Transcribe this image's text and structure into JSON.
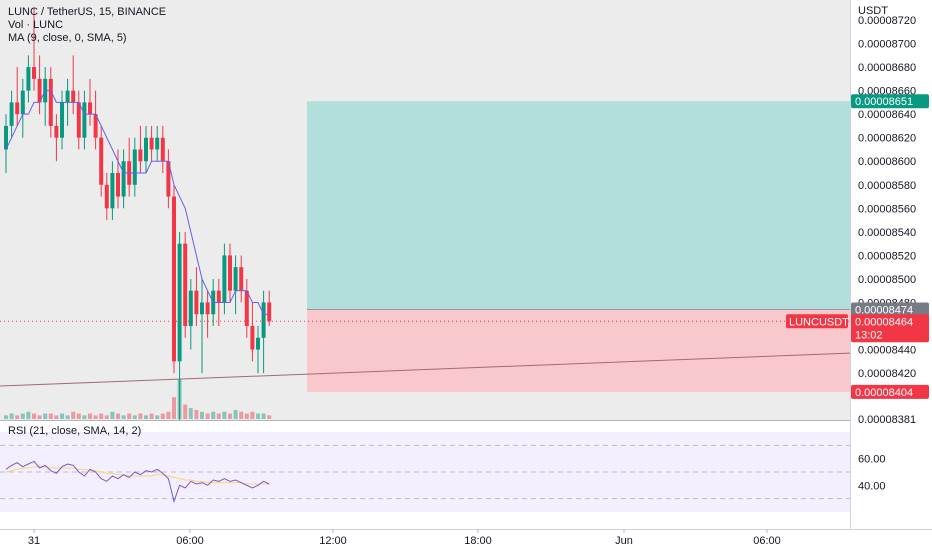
{
  "legend": {
    "symbol": "LUNC / TetherUS, 15, BINANCE",
    "volume": "Vol · LUNC",
    "ma": "MA (9, close, 0, SMA, 5)",
    "rsi": "RSI (21, close, SMA, 14, 2)"
  },
  "price_axis": {
    "currency": "USDT",
    "ticks": [
      "0.00008720",
      "0.00008700",
      "0.00008680",
      "0.00008660",
      "0.00008640",
      "0.00008620",
      "0.00008600",
      "0.00008580",
      "0.00008560",
      "0.00008540",
      "0.00008520",
      "0.00008500",
      "0.00008480",
      "0.00008440",
      "0.00008420",
      "0.00008381"
    ],
    "tick_values": [
      8.72e-05,
      8.7e-05,
      8.68e-05,
      8.66e-05,
      8.64e-05,
      8.62e-05,
      8.6e-05,
      8.58e-05,
      8.56e-05,
      8.54e-05,
      8.52e-05,
      8.5e-05,
      8.48e-05,
      8.44e-05,
      8.42e-05,
      8.381e-05
    ]
  },
  "price_tags": {
    "target": {
      "text": "0.00008651",
      "value": 8.651e-05,
      "color": "#089981"
    },
    "entry": {
      "text": "0.00008474",
      "value": 8.474e-05,
      "color": "#787b86"
    },
    "current": {
      "text": "0.00008464",
      "value": 8.464e-05,
      "color": "#f23645",
      "symbol": "LUNCUSDT",
      "countdown": "13:02"
    },
    "stop": {
      "text": "0.00008404",
      "value": 8.404e-05,
      "color": "#f23645"
    }
  },
  "rsi_axis": {
    "ticks": [
      "60.00",
      "40.00"
    ],
    "tick_values": [
      60,
      40
    ],
    "bands": [
      70,
      50,
      30
    ]
  },
  "time_axis": {
    "labels": [
      "31",
      "06:00",
      "12:00",
      "18:00",
      "Jun",
      "06:00"
    ]
  },
  "colors": {
    "up": "#089981",
    "down": "#f23645",
    "ma": "#6c5ce7",
    "rsi": "#7e57c2",
    "rsi_ma": "#f5d76e",
    "profit_zone": "#b2dfdb",
    "loss_zone": "#f8c8cc"
  },
  "chart_data": {
    "type": "candlestick",
    "symbol": "LUNC / TetherUS",
    "interval": "15",
    "exchange": "BINANCE",
    "candles": [
      [
        8.61e-05,
        8.64e-05,
        8.59e-05,
        8.63e-05
      ],
      [
        8.63e-05,
        8.66e-05,
        8.62e-05,
        8.65e-05
      ],
      [
        8.65e-05,
        8.68e-05,
        8.63e-05,
        8.64e-05
      ],
      [
        8.64e-05,
        8.67e-05,
        8.62e-05,
        8.66e-05
      ],
      [
        8.66e-05,
        8.69e-05,
        8.65e-05,
        8.68e-05
      ],
      [
        8.68e-05,
        8.73e-05,
        8.66e-05,
        8.67e-05
      ],
      [
        8.67e-05,
        8.69e-05,
        8.64e-05,
        8.65e-05
      ],
      [
        8.65e-05,
        8.68e-05,
        8.63e-05,
        8.67e-05
      ],
      [
        8.67e-05,
        8.68e-05,
        8.62e-05,
        8.63e-05
      ],
      [
        8.63e-05,
        8.64e-05,
        8.6e-05,
        8.62e-05
      ],
      [
        8.62e-05,
        8.66e-05,
        8.61e-05,
        8.65e-05
      ],
      [
        8.65e-05,
        8.67e-05,
        8.63e-05,
        8.66e-05
      ],
      [
        8.66e-05,
        8.69e-05,
        8.64e-05,
        8.65e-05
      ],
      [
        8.65e-05,
        8.66e-05,
        8.61e-05,
        8.62e-05
      ],
      [
        8.62e-05,
        8.66e-05,
        8.61e-05,
        8.65e-05
      ],
      [
        8.65e-05,
        8.67e-05,
        8.63e-05,
        8.64e-05
      ],
      [
        8.64e-05,
        8.66e-05,
        8.61e-05,
        8.62e-05
      ],
      [
        8.62e-05,
        8.63e-05,
        8.57e-05,
        8.58e-05
      ],
      [
        8.58e-05,
        8.59e-05,
        8.55e-05,
        8.56e-05
      ],
      [
        8.56e-05,
        8.6e-05,
        8.55e-05,
        8.59e-05
      ],
      [
        8.59e-05,
        8.61e-05,
        8.56e-05,
        8.57e-05
      ],
      [
        8.57e-05,
        8.61e-05,
        8.56e-05,
        8.6e-05
      ],
      [
        8.6e-05,
        8.62e-05,
        8.57e-05,
        8.58e-05
      ],
      [
        8.58e-05,
        8.62e-05,
        8.57e-05,
        8.61e-05
      ],
      [
        8.61e-05,
        8.63e-05,
        8.59e-05,
        8.6e-05
      ],
      [
        8.6e-05,
        8.63e-05,
        8.59e-05,
        8.62e-05
      ],
      [
        8.62e-05,
        8.63e-05,
        8.6e-05,
        8.61e-05
      ],
      [
        8.61e-05,
        8.63e-05,
        8.6e-05,
        8.62e-05
      ],
      [
        8.62e-05,
        8.63e-05,
        8.59e-05,
        8.6e-05
      ],
      [
        8.6e-05,
        8.61e-05,
        8.56e-05,
        8.57e-05
      ],
      [
        8.57e-05,
        8.58e-05,
        8.42e-05,
        8.43e-05
      ],
      [
        8.43e-05,
        8.54e-05,
        8.38e-05,
        8.53e-05
      ],
      [
        8.53e-05,
        8.54e-05,
        8.45e-05,
        8.46e-05
      ],
      [
        8.46e-05,
        8.5e-05,
        8.44e-05,
        8.49e-05
      ],
      [
        8.49e-05,
        8.51e-05,
        8.46e-05,
        8.47e-05
      ],
      [
        8.47e-05,
        8.5e-05,
        8.42e-05,
        8.48e-05
      ],
      [
        8.48e-05,
        8.49e-05,
        8.45e-05,
        8.47e-05
      ],
      [
        8.47e-05,
        8.5e-05,
        8.46e-05,
        8.49e-05
      ],
      [
        8.49e-05,
        8.5e-05,
        8.46e-05,
        8.48e-05
      ],
      [
        8.48e-05,
        8.53e-05,
        8.47e-05,
        8.52e-05
      ],
      [
        8.52e-05,
        8.53e-05,
        8.48e-05,
        8.49e-05
      ],
      [
        8.49e-05,
        8.52e-05,
        8.47e-05,
        8.51e-05
      ],
      [
        8.51e-05,
        8.52e-05,
        8.48e-05,
        8.49e-05
      ],
      [
        8.49e-05,
        8.5e-05,
        8.45e-05,
        8.46e-05
      ],
      [
        8.46e-05,
        8.48e-05,
        8.43e-05,
        8.44e-05
      ],
      [
        8.44e-05,
        8.46e-05,
        8.42e-05,
        8.45e-05
      ],
      [
        8.45e-05,
        8.49e-05,
        8.42e-05,
        8.48e-05
      ],
      [
        8.48e-05,
        8.49e-05,
        8.46e-05,
        8.464e-05
      ]
    ],
    "volume": [
      2,
      3,
      2,
      3,
      4,
      3,
      2,
      3,
      3,
      2,
      3,
      2,
      4,
      3,
      2,
      3,
      2,
      3,
      2,
      4,
      3,
      2,
      3,
      2,
      3,
      2,
      3,
      2,
      3,
      4,
      12,
      22,
      8,
      6,
      5,
      4,
      3,
      4,
      3,
      4,
      3,
      5,
      4,
      3,
      4,
      3,
      3,
      2
    ],
    "ma": [
      8.61e-05,
      8.62e-05,
      8.63e-05,
      8.64e-05,
      8.64e-05,
      8.65e-05,
      8.65e-05,
      8.66e-05,
      8.66e-05,
      8.65e-05,
      8.65e-05,
      8.65e-05,
      8.65e-05,
      8.65e-05,
      8.64e-05,
      8.64e-05,
      8.64e-05,
      8.63e-05,
      8.62e-05,
      8.61e-05,
      8.6e-05,
      8.59e-05,
      8.59e-05,
      8.59e-05,
      8.59e-05,
      8.59e-05,
      8.6e-05,
      8.6e-05,
      8.6e-05,
      8.6e-05,
      8.58e-05,
      8.57e-05,
      8.56e-05,
      8.54e-05,
      8.52e-05,
      8.5e-05,
      8.49e-05,
      8.48e-05,
      8.48e-05,
      8.48e-05,
      8.48e-05,
      8.49e-05,
      8.49e-05,
      8.49e-05,
      8.48e-05,
      8.48e-05,
      8.47e-05,
      8.47e-05
    ],
    "rsi": [
      52,
      55,
      57,
      54,
      56,
      58,
      53,
      55,
      51,
      49,
      54,
      56,
      55,
      50,
      47,
      52,
      50,
      45,
      43,
      47,
      45,
      48,
      46,
      50,
      48,
      51,
      50,
      52,
      49,
      45,
      28,
      40,
      38,
      43,
      41,
      42,
      40,
      44,
      43,
      45,
      43,
      44,
      42,
      40,
      38,
      40,
      43,
      41
    ],
    "rsi_ma": [
      50,
      51,
      52,
      53,
      53,
      54,
      54,
      54,
      53,
      53,
      53,
      53,
      53,
      52,
      52,
      51,
      51,
      50,
      49,
      49,
      48,
      48,
      47,
      47,
      47,
      47,
      47,
      48,
      48,
      47,
      46,
      45,
      44,
      44,
      43,
      43,
      42,
      42,
      42,
      42,
      42,
      42,
      42,
      41,
      41,
      41,
      41,
      41
    ],
    "position": {
      "entry": 8.474e-05,
      "target": 8.651e-05,
      "stop": 8.404e-05
    },
    "trendline": {
      "from": 8.409e-05,
      "to": 8.437e-05
    }
  }
}
